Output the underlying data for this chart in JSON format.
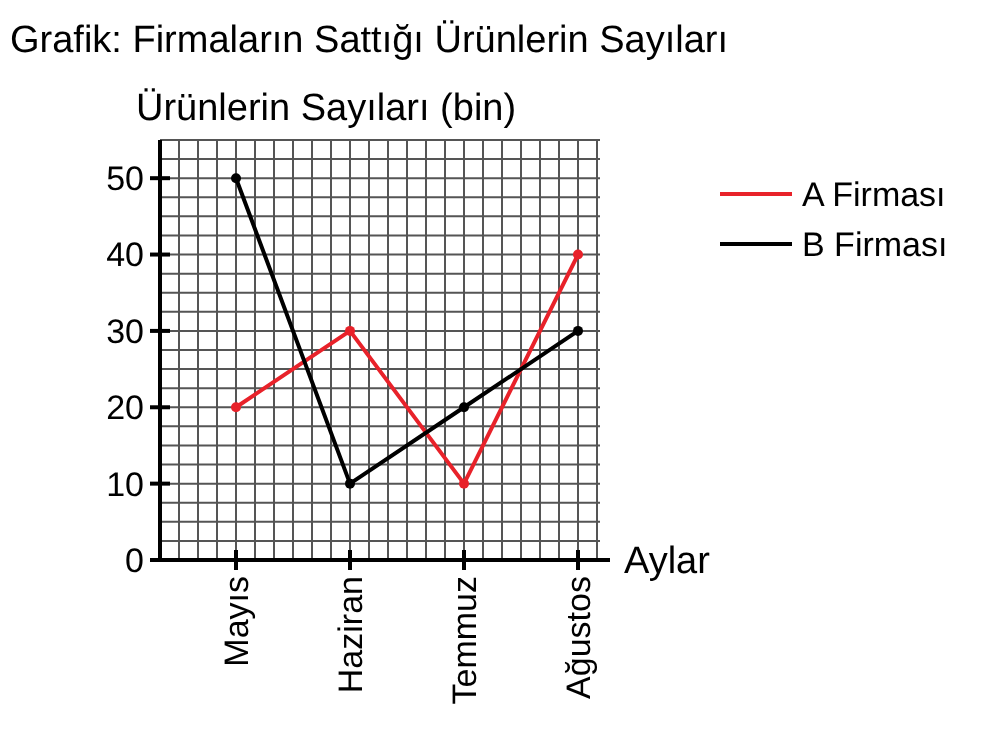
{
  "chart_data": {
    "type": "line",
    "title": "Grafik: Firmaların Sattığı Ürünlerin Sayıları",
    "ylabel": "Ürünlerin Sayıları (bin)",
    "xlabel": "Aylar",
    "categories": [
      "Mayıs",
      "Haziran",
      "Temmuz",
      "Ağustos"
    ],
    "series": [
      {
        "name": "A Firması",
        "color": "#e8222a",
        "values": [
          20,
          30,
          10,
          40
        ]
      },
      {
        "name": "B Firması",
        "color": "#000000",
        "values": [
          50,
          10,
          20,
          30
        ]
      }
    ],
    "ylim": [
      0,
      55
    ],
    "yticks": [
      0,
      {
        "value": 2.5,
        "label": null
      },
      {
        "value": 5,
        "label": null
      },
      {
        "value": 7.5,
        "label": null
      },
      10,
      {
        "value": 12.5,
        "label": null
      },
      {
        "value": 15,
        "label": null
      },
      {
        "value": 17.5,
        "label": null
      },
      20,
      {
        "value": 22.5,
        "label": null
      },
      {
        "value": 25,
        "label": null
      },
      {
        "value": 27.5,
        "label": null
      },
      30,
      {
        "value": 32.5,
        "label": null
      },
      {
        "value": 35,
        "label": null
      },
      {
        "value": 37.5,
        "label": null
      },
      40,
      {
        "value": 42.5,
        "label": null
      },
      {
        "value": 45,
        "label": null
      },
      {
        "value": 47.5,
        "label": null
      },
      50,
      {
        "value": 52.5,
        "label": null
      },
      {
        "value": 55,
        "label": null
      }
    ],
    "grid": true,
    "legend": "top right",
    "marker": "circle",
    "line_style": "solid"
  }
}
